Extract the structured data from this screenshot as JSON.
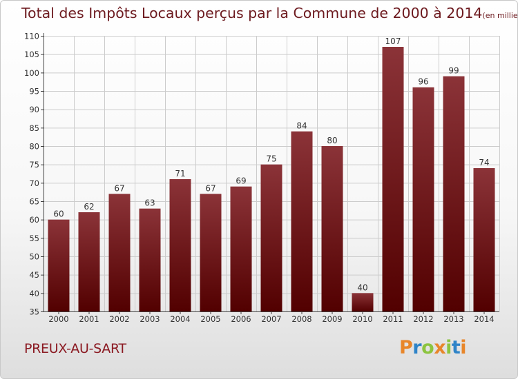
{
  "title": "Total des Impôts Locaux perçus par la Commune de 2000 à 2014",
  "title_unit": "(en milliers d'€)",
  "commune": "PREUX-AU-SART",
  "logo_text": "Proxiti",
  "colors": {
    "bar_top": "#8b3338",
    "bar_bottom": "#520000",
    "title": "#6d1a1f",
    "commune": "#8b1a22",
    "axis": "#404040",
    "grid": "#cccccc"
  },
  "chart_data": {
    "type": "bar",
    "title": "Total des Impôts Locaux perçus par la Commune de 2000 à 2014",
    "xlabel": "",
    "ylabel": "en milliers d'€",
    "categories": [
      "2000",
      "2001",
      "2002",
      "2003",
      "2004",
      "2005",
      "2006",
      "2007",
      "2008",
      "2009",
      "2010",
      "2011",
      "2012",
      "2013",
      "2014"
    ],
    "values": [
      60,
      62,
      67,
      63,
      71,
      67,
      69,
      75,
      84,
      80,
      40,
      107,
      96,
      99,
      74
    ],
    "ylim": [
      35,
      110
    ],
    "yticks": [
      35,
      40,
      45,
      50,
      55,
      60,
      65,
      70,
      75,
      80,
      85,
      90,
      95,
      100,
      105,
      110
    ],
    "grid": true
  }
}
